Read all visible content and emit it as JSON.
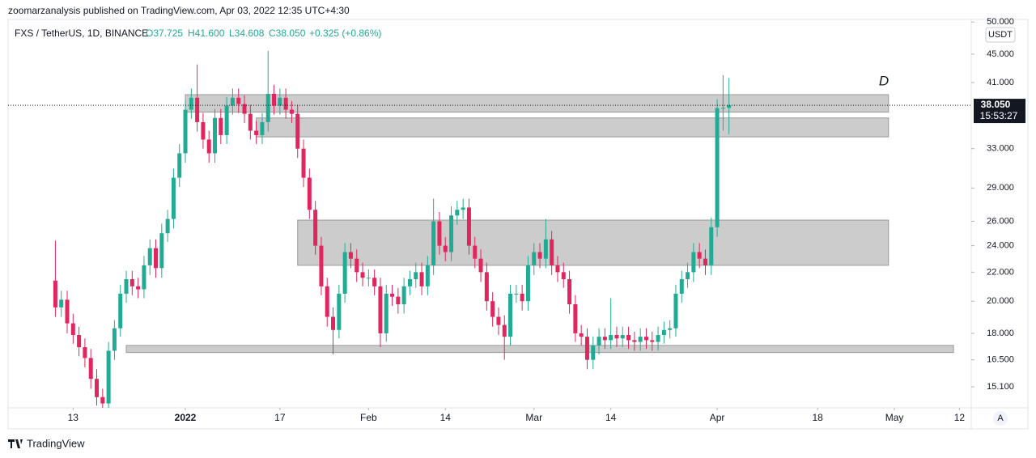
{
  "header": {
    "published": "zoomarzanalysis published on TradingView.com, Apr 03, 2022 12:35 UTC+4:30",
    "symbol": "FXS / TetherUS, 1D, BINANCE",
    "open": "O37.725",
    "high": "H41.600",
    "low": "L34.608",
    "close": "C38.050",
    "change": "+0.325 (+0.86%)"
  },
  "branding": "TradingView",
  "chart_data": {
    "type": "candlestick",
    "currency": "USDT",
    "log_scale": true,
    "annotation": "D",
    "countdown": "15:53:27",
    "up_color": "#22ab94",
    "down_color": "#e0265e",
    "zone_color": "#cccccc",
    "last_price": {
      "value": 38.05,
      "label": "38.050"
    },
    "xlim": [
      "2021-12-02",
      "2022-05-14"
    ],
    "ylim": [
      14.17,
      50.7
    ],
    "yticks": [
      {
        "value": 50,
        "label": "50.000"
      },
      {
        "value": 45,
        "label": "45.000"
      },
      {
        "value": 41,
        "label": "41.000"
      },
      {
        "value": 33,
        "label": "33.000"
      },
      {
        "value": 29,
        "label": "29.000"
      },
      {
        "value": 26,
        "label": "26.000"
      },
      {
        "value": 24,
        "label": "24.000"
      },
      {
        "value": 22,
        "label": "22.000"
      },
      {
        "value": 20,
        "label": "20.000"
      },
      {
        "value": 18,
        "label": "18.000"
      },
      {
        "value": 16.5,
        "label": "16.500"
      },
      {
        "value": 15.1,
        "label": "15.100"
      }
    ],
    "xticks": [
      {
        "value": "2021-12-13",
        "label": "13"
      },
      {
        "value": "2022-01-01",
        "label": "2022"
      },
      {
        "value": "2022-01-17",
        "label": "17"
      },
      {
        "value": "2022-02-01",
        "label": "Feb"
      },
      {
        "value": "2022-02-14",
        "label": "14"
      },
      {
        "value": "2022-03-01",
        "label": "Mar"
      },
      {
        "value": "2022-03-14",
        "label": "14"
      },
      {
        "value": "2022-04-01",
        "label": "Apr"
      },
      {
        "value": "2022-04-18",
        "label": "18"
      },
      {
        "value": "2022-05-01",
        "label": "May"
      },
      {
        "value": "2022-05-12",
        "label": "12"
      }
    ],
    "zones": [
      {
        "from": "2022-01-01",
        "to": "2022-04-30",
        "low": 37.2,
        "high": 39.4
      },
      {
        "from": "2022-01-13",
        "to": "2022-04-30",
        "low": 34.3,
        "high": 36.5
      },
      {
        "from": "2022-01-20",
        "to": "2022-04-30",
        "low": 22.5,
        "high": 26.1
      },
      {
        "from": "2021-12-22",
        "to": "2022-05-11",
        "low": 16.9,
        "high": 17.3
      }
    ],
    "x": [
      "2021-12-10",
      "2021-12-11",
      "2021-12-12",
      "2021-12-13",
      "2021-12-14",
      "2021-12-15",
      "2021-12-16",
      "2021-12-17",
      "2021-12-18",
      "2021-12-19",
      "2021-12-20",
      "2021-12-21",
      "2021-12-22",
      "2021-12-23",
      "2021-12-24",
      "2021-12-25",
      "2021-12-26",
      "2021-12-27",
      "2021-12-28",
      "2021-12-29",
      "2021-12-30",
      "2021-12-31",
      "2022-01-01",
      "2022-01-02",
      "2022-01-03",
      "2022-01-04",
      "2022-01-05",
      "2022-01-06",
      "2022-01-07",
      "2022-01-08",
      "2022-01-09",
      "2022-01-10",
      "2022-01-11",
      "2022-01-12",
      "2022-01-13",
      "2022-01-14",
      "2022-01-15",
      "2022-01-16",
      "2022-01-17",
      "2022-01-18",
      "2022-01-19",
      "2022-01-20",
      "2022-01-21",
      "2022-01-22",
      "2022-01-23",
      "2022-01-24",
      "2022-01-25",
      "2022-01-26",
      "2022-01-27",
      "2022-01-28",
      "2022-01-29",
      "2022-01-30",
      "2022-01-31",
      "2022-02-01",
      "2022-02-02",
      "2022-02-03",
      "2022-02-04",
      "2022-02-05",
      "2022-02-06",
      "2022-02-07",
      "2022-02-08",
      "2022-02-09",
      "2022-02-10",
      "2022-02-11",
      "2022-02-12",
      "2022-02-13",
      "2022-02-14",
      "2022-02-15",
      "2022-02-16",
      "2022-02-17",
      "2022-02-18",
      "2022-02-19",
      "2022-02-20",
      "2022-02-21",
      "2022-02-22",
      "2022-02-23",
      "2022-02-24",
      "2022-02-25",
      "2022-02-26",
      "2022-02-27",
      "2022-02-28",
      "2022-03-01",
      "2022-03-02",
      "2022-03-03",
      "2022-03-04",
      "2022-03-05",
      "2022-03-06",
      "2022-03-07",
      "2022-03-08",
      "2022-03-09",
      "2022-03-10",
      "2022-03-11",
      "2022-03-12",
      "2022-03-13",
      "2022-03-14",
      "2022-03-15",
      "2022-03-16",
      "2022-03-17",
      "2022-03-18",
      "2022-03-19",
      "2022-03-20",
      "2022-03-21",
      "2022-03-22",
      "2022-03-23",
      "2022-03-24",
      "2022-03-25",
      "2022-03-26",
      "2022-03-27",
      "2022-03-28",
      "2022-03-29",
      "2022-03-30",
      "2022-03-31",
      "2022-04-01",
      "2022-04-02",
      "2022-04-03"
    ],
    "open": [
      21.4,
      19.6,
      20.1,
      18.6,
      17.9,
      17.2,
      16.6,
      15.5,
      14.6,
      14.3,
      17.0,
      18.3,
      20.5,
      21.5,
      21.0,
      20.8,
      22.5,
      23.8,
      22.3,
      25.0,
      26.2,
      30.0,
      32.5,
      37.5,
      39.0,
      36.0,
      34.0,
      32.5,
      36.5,
      34.5,
      38.0,
      39.0,
      38.2,
      37.0,
      35.0,
      34.5,
      36.0,
      39.5,
      38.0,
      39.0,
      37.5,
      37.0,
      33.0,
      30.0,
      27.0,
      24.0,
      21.0,
      19.0,
      18.2,
      20.5,
      23.5,
      23.0,
      22.0,
      21.6,
      21.6,
      21.0,
      18.0,
      20.5,
      20.3,
      19.8,
      21.0,
      21.5,
      22.0,
      21.0,
      22.5,
      26.0,
      24.0,
      23.5,
      26.5,
      27.0,
      27.2,
      24.0,
      23.0,
      22.0,
      20.0,
      19.0,
      18.5,
      17.8,
      20.5,
      20.5,
      20.0,
      22.5,
      23.5,
      23.0,
      24.5,
      22.5,
      22.0,
      21.5,
      19.8,
      18.0,
      17.8,
      16.5,
      17.3,
      17.8,
      17.6,
      17.9,
      17.7,
      17.9,
      17.6,
      17.5,
      17.8,
      17.6,
      17.5,
      17.9,
      18.2,
      18.3,
      20.5,
      21.5,
      22.0,
      23.5,
      23.0,
      22.5,
      25.5,
      37.7,
      37.725
    ],
    "high": [
      24.4,
      20.7,
      20.7,
      19.2,
      18.4,
      17.7,
      17.1,
      16.0,
      15.0,
      17.5,
      18.8,
      21.1,
      22.1,
      22.1,
      21.6,
      23.2,
      24.5,
      24.5,
      25.8,
      27.0,
      30.9,
      33.5,
      38.6,
      40.2,
      43.5,
      37.1,
      35.0,
      37.6,
      37.6,
      39.1,
      40.2,
      40.2,
      39.3,
      38.1,
      36.1,
      37.1,
      45.5,
      40.7,
      40.2,
      40.2,
      38.6,
      38.1,
      34.0,
      30.9,
      27.8,
      24.7,
      21.6,
      19.6,
      21.1,
      24.2,
      24.2,
      23.7,
      22.7,
      22.2,
      22.2,
      21.6,
      21.1,
      21.1,
      20.9,
      21.6,
      22.1,
      22.7,
      22.7,
      23.2,
      28.0,
      26.8,
      24.7,
      27.3,
      27.8,
      28.0,
      28.0,
      24.7,
      23.7,
      22.7,
      20.6,
      19.6,
      19.1,
      21.1,
      21.1,
      21.1,
      23.2,
      24.2,
      24.2,
      26.2,
      25.2,
      23.2,
      22.7,
      22.1,
      20.4,
      18.5,
      18.3,
      17.8,
      18.3,
      18.3,
      20.2,
      18.4,
      18.4,
      18.4,
      18.1,
      18.3,
      18.3,
      18.1,
      18.4,
      18.7,
      18.8,
      21.1,
      22.1,
      22.7,
      24.2,
      24.2,
      23.7,
      26.3,
      38.8,
      42.0,
      41.6
    ],
    "low": [
      19.0,
      19.0,
      18.0,
      17.4,
      16.7,
      16.1,
      15.0,
      14.2,
      13.9,
      13.9,
      16.5,
      17.8,
      19.9,
      20.4,
      20.2,
      20.2,
      21.8,
      21.6,
      21.6,
      24.3,
      25.4,
      29.1,
      31.5,
      36.4,
      34.9,
      33.0,
      31.5,
      31.5,
      33.5,
      33.5,
      36.9,
      37.1,
      35.9,
      34.0,
      33.5,
      33.5,
      34.9,
      36.9,
      36.9,
      36.4,
      35.9,
      32.0,
      29.1,
      26.2,
      23.3,
      20.4,
      18.4,
      16.8,
      17.7,
      19.9,
      22.3,
      21.3,
      21.0,
      21.0,
      20.4,
      17.2,
      17.5,
      19.7,
      19.2,
      19.2,
      20.4,
      20.9,
      20.4,
      20.4,
      21.8,
      23.3,
      22.8,
      22.8,
      25.7,
      26.2,
      23.3,
      22.3,
      21.3,
      19.4,
      18.4,
      17.9,
      16.5,
      17.3,
      19.9,
      19.4,
      19.4,
      21.8,
      22.3,
      22.3,
      21.8,
      21.3,
      20.9,
      19.2,
      17.5,
      17.3,
      16.0,
      16.0,
      16.8,
      17.1,
      17.1,
      17.2,
      17.2,
      17.1,
      17.0,
      17.0,
      17.1,
      17.0,
      17.0,
      17.4,
      17.7,
      17.8,
      19.9,
      20.9,
      21.3,
      22.3,
      21.8,
      21.8,
      24.7,
      35.0,
      34.608
    ],
    "close": [
      19.6,
      20.1,
      18.6,
      17.9,
      17.2,
      16.6,
      15.5,
      14.6,
      14.3,
      17.0,
      18.3,
      20.5,
      21.5,
      21.0,
      20.8,
      22.5,
      23.8,
      22.3,
      25.0,
      26.2,
      30.0,
      32.5,
      37.5,
      39.0,
      36.0,
      34.0,
      32.5,
      36.5,
      34.5,
      38.0,
      39.0,
      38.2,
      37.0,
      35.0,
      34.5,
      36.0,
      39.5,
      38.0,
      39.0,
      37.5,
      37.0,
      33.0,
      30.0,
      27.0,
      24.0,
      21.0,
      19.0,
      18.2,
      20.5,
      23.5,
      23.0,
      22.0,
      21.6,
      21.6,
      21.0,
      18.0,
      20.5,
      20.3,
      19.8,
      21.0,
      21.5,
      22.0,
      21.0,
      22.5,
      26.0,
      24.0,
      23.5,
      26.5,
      27.0,
      27.2,
      24.0,
      23.0,
      22.0,
      20.0,
      19.0,
      18.5,
      17.8,
      20.5,
      20.5,
      20.0,
      22.5,
      23.5,
      23.0,
      24.5,
      22.5,
      22.0,
      21.5,
      19.8,
      18.0,
      17.8,
      16.5,
      17.3,
      17.8,
      17.6,
      17.9,
      17.7,
      17.9,
      17.6,
      17.5,
      17.8,
      17.6,
      17.5,
      17.9,
      18.2,
      18.3,
      20.5,
      21.5,
      22.0,
      23.5,
      23.0,
      22.5,
      25.5,
      37.7,
      37.725,
      38.05
    ]
  }
}
